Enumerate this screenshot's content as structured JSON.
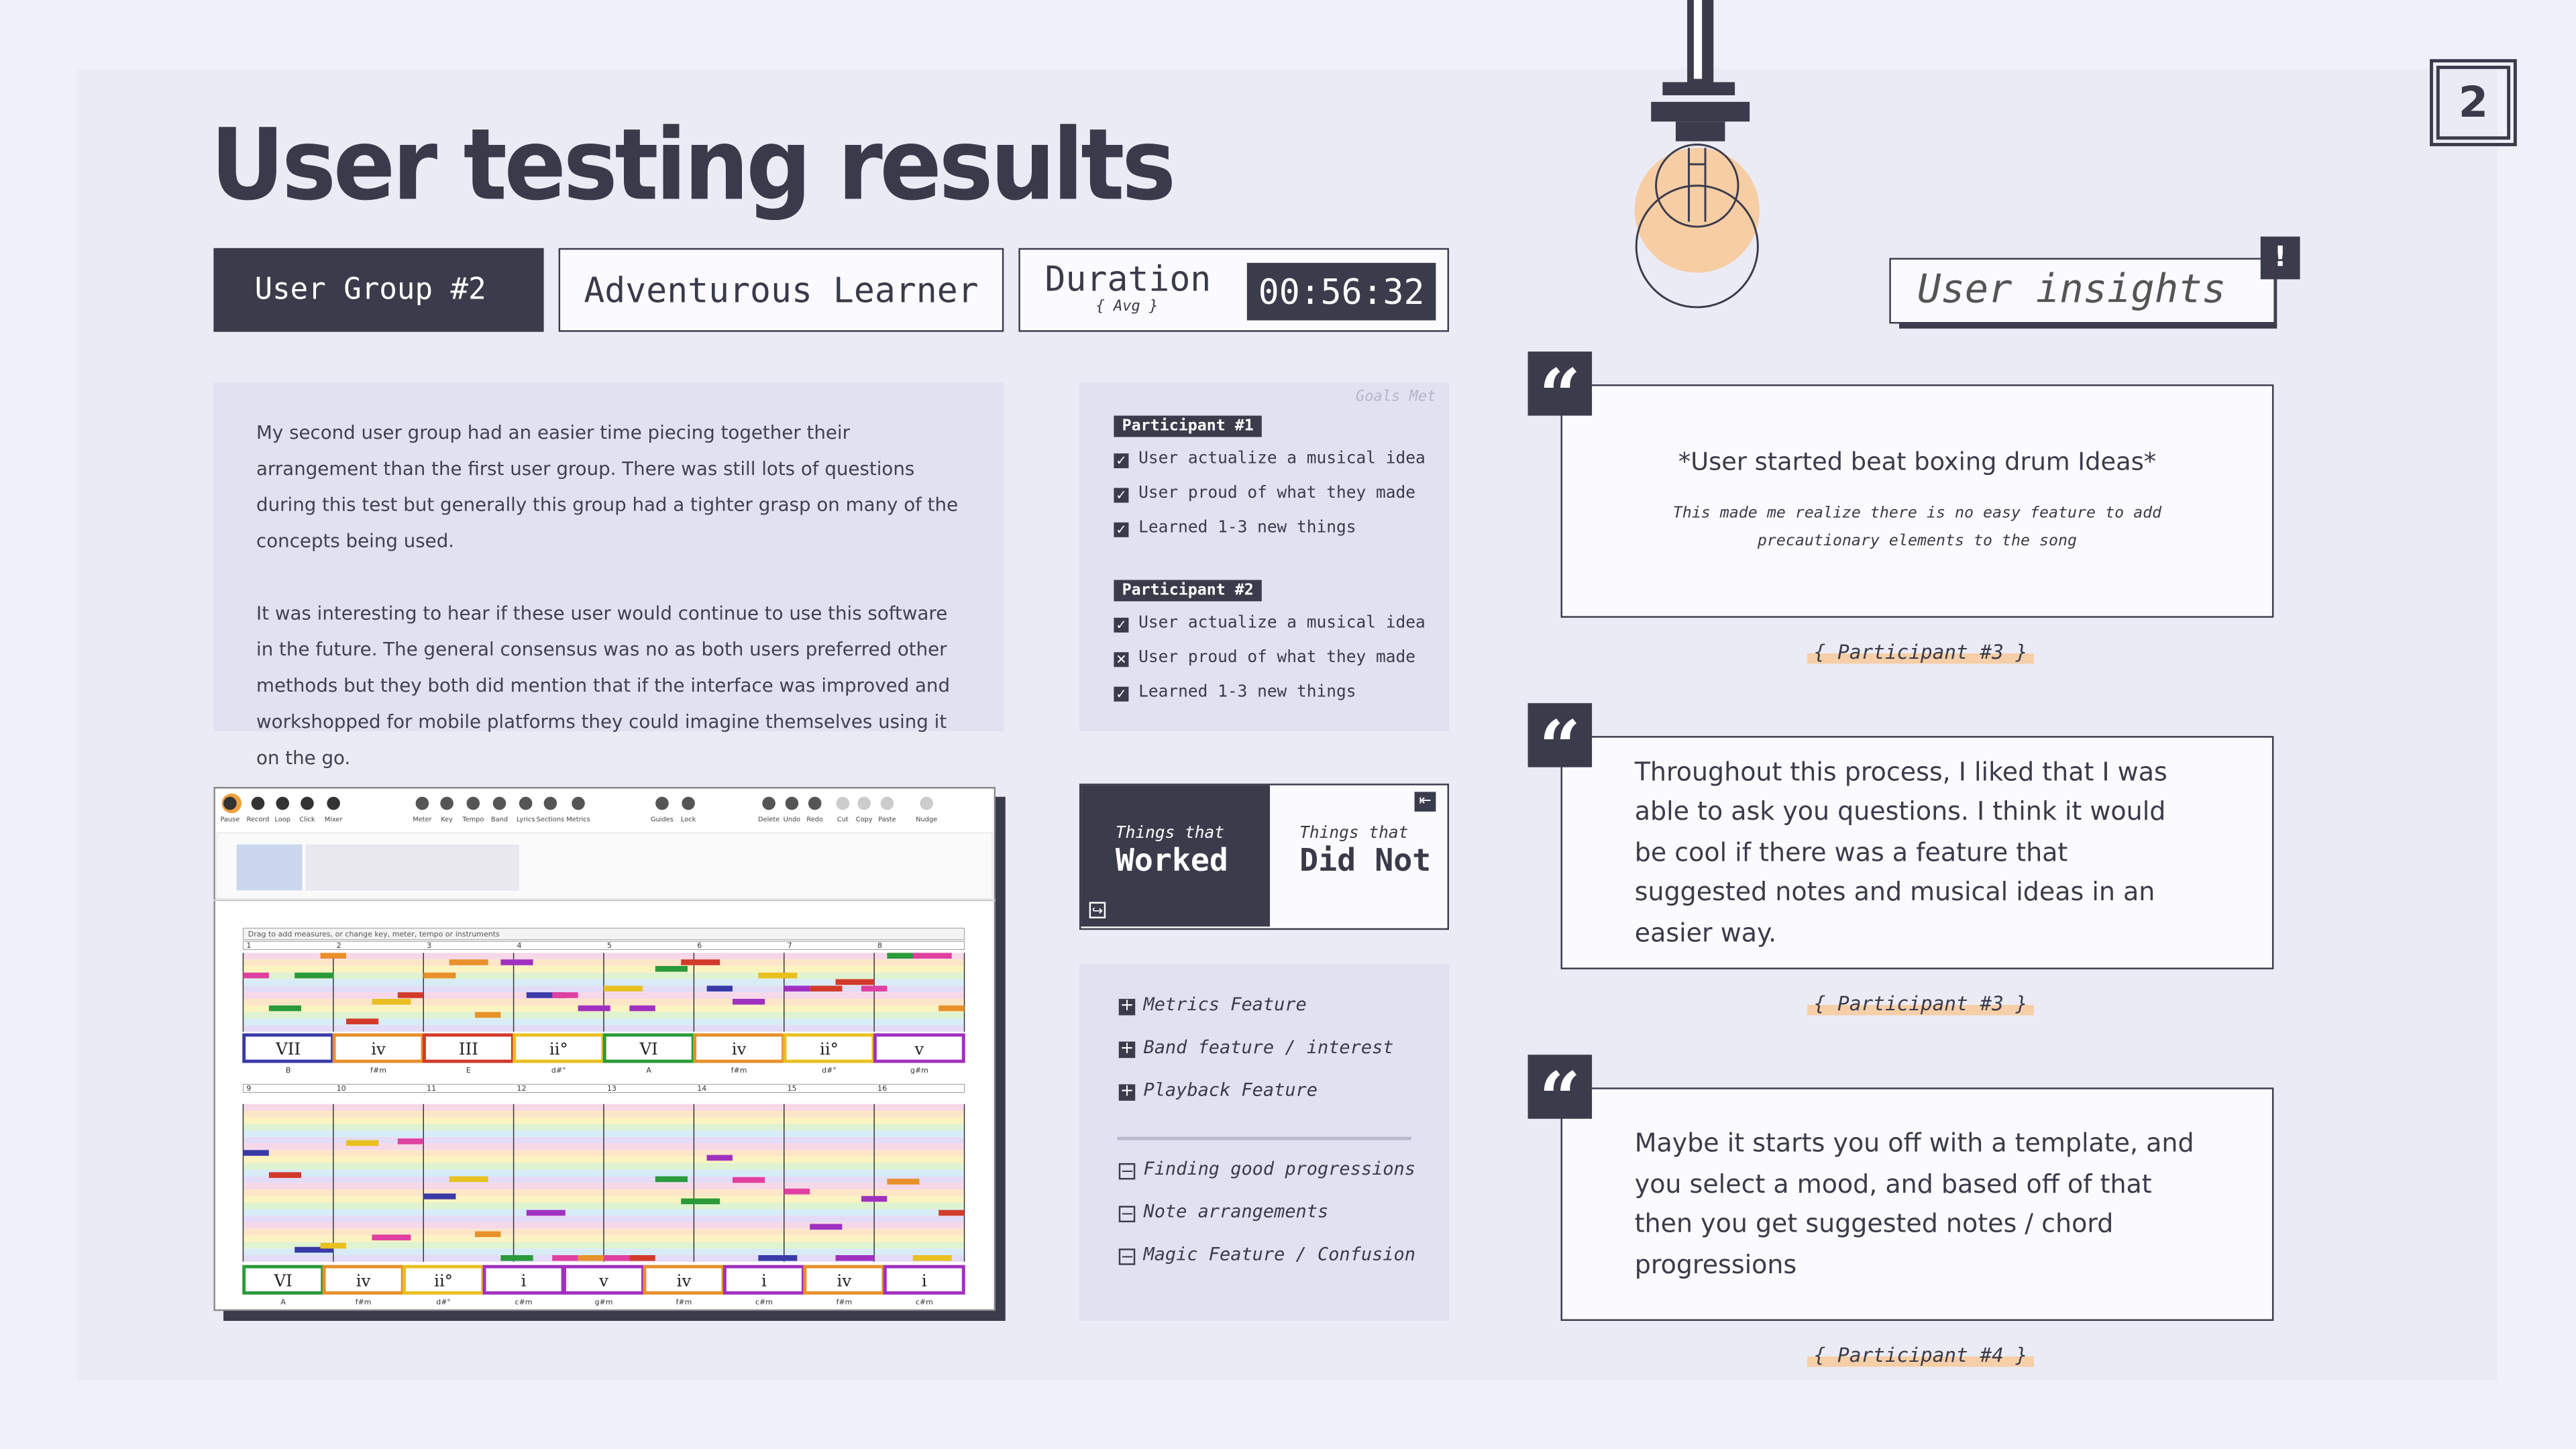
{
  "header": {
    "title": "User testing results",
    "page_number": "2"
  },
  "tags": {
    "group": "User Group #2",
    "persona": "Adventurous Learner",
    "duration_label": "Duration",
    "duration_sub": "{ Avg }",
    "duration_value": "00:56:32"
  },
  "summary": {
    "paragraphs": [
      "My second user group had an easier time piecing together their arrangement than the first user group. There was still lots of questions during this test but generally this group had a tighter grasp on many of the concepts being used.",
      "It was interesting to hear if these user would continue to use this software in the future. The general consensus was no as both users preferred other methods but they both did mention that if the interface was improved and workshopped for mobile platforms they could imagine themselves using it on the go."
    ]
  },
  "goals": {
    "heading": "Goals Met",
    "participants": [
      {
        "name": "Participant #1",
        "items": [
          {
            "text": "User actualize a musical idea",
            "met": true
          },
          {
            "text": "User proud of what they made",
            "met": true
          },
          {
            "text": "Learned 1-3 new things",
            "met": true
          }
        ]
      },
      {
        "name": "Participant #2",
        "items": [
          {
            "text": "User actualize a musical idea",
            "met": true
          },
          {
            "text": "User proud of what they made",
            "met": false
          },
          {
            "text": "Learned 1-3 new things",
            "met": true
          }
        ]
      }
    ]
  },
  "app_screenshot": {
    "toolbar": [
      "Pause",
      "Record",
      "Loop",
      "Click",
      "Mixer",
      "Meter",
      "Key",
      "Tempo",
      "Band",
      "Lyrics",
      "Sections",
      "Metrics",
      "Guides",
      "Lock",
      "Delete",
      "Undo",
      "Redo",
      "Cut",
      "Copy",
      "Paste",
      "Nudge"
    ],
    "hint": "Drag to add measures, or change key, meter, tempo or instruments",
    "systems": [
      {
        "measures": [
          "1",
          "2",
          "3",
          "4",
          "5",
          "6",
          "7",
          "8"
        ],
        "chords": [
          {
            "numeral": "VII",
            "key": "B",
            "color": "#3a3aa8"
          },
          {
            "numeral": "iv",
            "key": "f#m",
            "color": "#e8902a"
          },
          {
            "numeral": "III",
            "key": "E",
            "color": "#d23a2a"
          },
          {
            "numeral": "ii°",
            "key": "d#°",
            "color": "#e8c020"
          },
          {
            "numeral": "VI",
            "key": "A",
            "color": "#2a9a3a"
          },
          {
            "numeral": "iv",
            "key": "f#m",
            "color": "#e8902a"
          },
          {
            "numeral": "ii°",
            "key": "d#°",
            "color": "#e8c020"
          },
          {
            "numeral": "v",
            "key": "g#m",
            "color": "#a030c0"
          }
        ]
      },
      {
        "measures": [
          "9",
          "10",
          "11",
          "12",
          "13",
          "14",
          "15",
          "16"
        ],
        "chords": [
          {
            "numeral": "VI",
            "key": "A",
            "color": "#2a9a3a"
          },
          {
            "numeral": "iv",
            "key": "f#m",
            "color": "#e8902a"
          },
          {
            "numeral": "ii°",
            "key": "d#°",
            "color": "#e8c020"
          },
          {
            "numeral": "i",
            "key": "c#m",
            "color": "#a030c0"
          },
          {
            "numeral": "v",
            "key": "g#m",
            "color": "#a030c0"
          },
          {
            "numeral": "iv",
            "key": "f#m",
            "color": "#e8902a"
          },
          {
            "numeral": "i",
            "key": "c#m",
            "color": "#a030c0"
          },
          {
            "numeral": "iv",
            "key": "f#m",
            "color": "#e8902a"
          },
          {
            "numeral": "i",
            "key": "c#m",
            "color": "#a030c0"
          }
        ]
      }
    ]
  },
  "feedback": {
    "worked_tab": {
      "small": "Things that",
      "big": "Worked"
    },
    "did_not_tab": {
      "small": "Things that",
      "big": "Did Not"
    },
    "worked": [
      "Metrics Feature",
      "Band feature / interest",
      "Playback Feature"
    ],
    "did_not": [
      "Finding good progressions",
      "Note arrangements",
      "Magic Feature / Confusion"
    ]
  },
  "insights": {
    "title": "User insights",
    "badge": "!",
    "quotes": [
      {
        "text": "*User started beat boxing drum Ideas*",
        "note": "This made me realize there is no easy feature to add precautionary elements to the song",
        "source": "{ Participant #3 }"
      },
      {
        "text": "Throughout this process, I liked that I was able to ask you questions. I think it would be cool if there was a feature that suggested notes and musical ideas in an easier way.",
        "source": "{ Participant #3 }"
      },
      {
        "text": "Maybe it starts you off with a template, and you select a mood, and based off of that then you get suggested notes / chord progressions",
        "source": "{ Participant #4 }"
      }
    ]
  }
}
